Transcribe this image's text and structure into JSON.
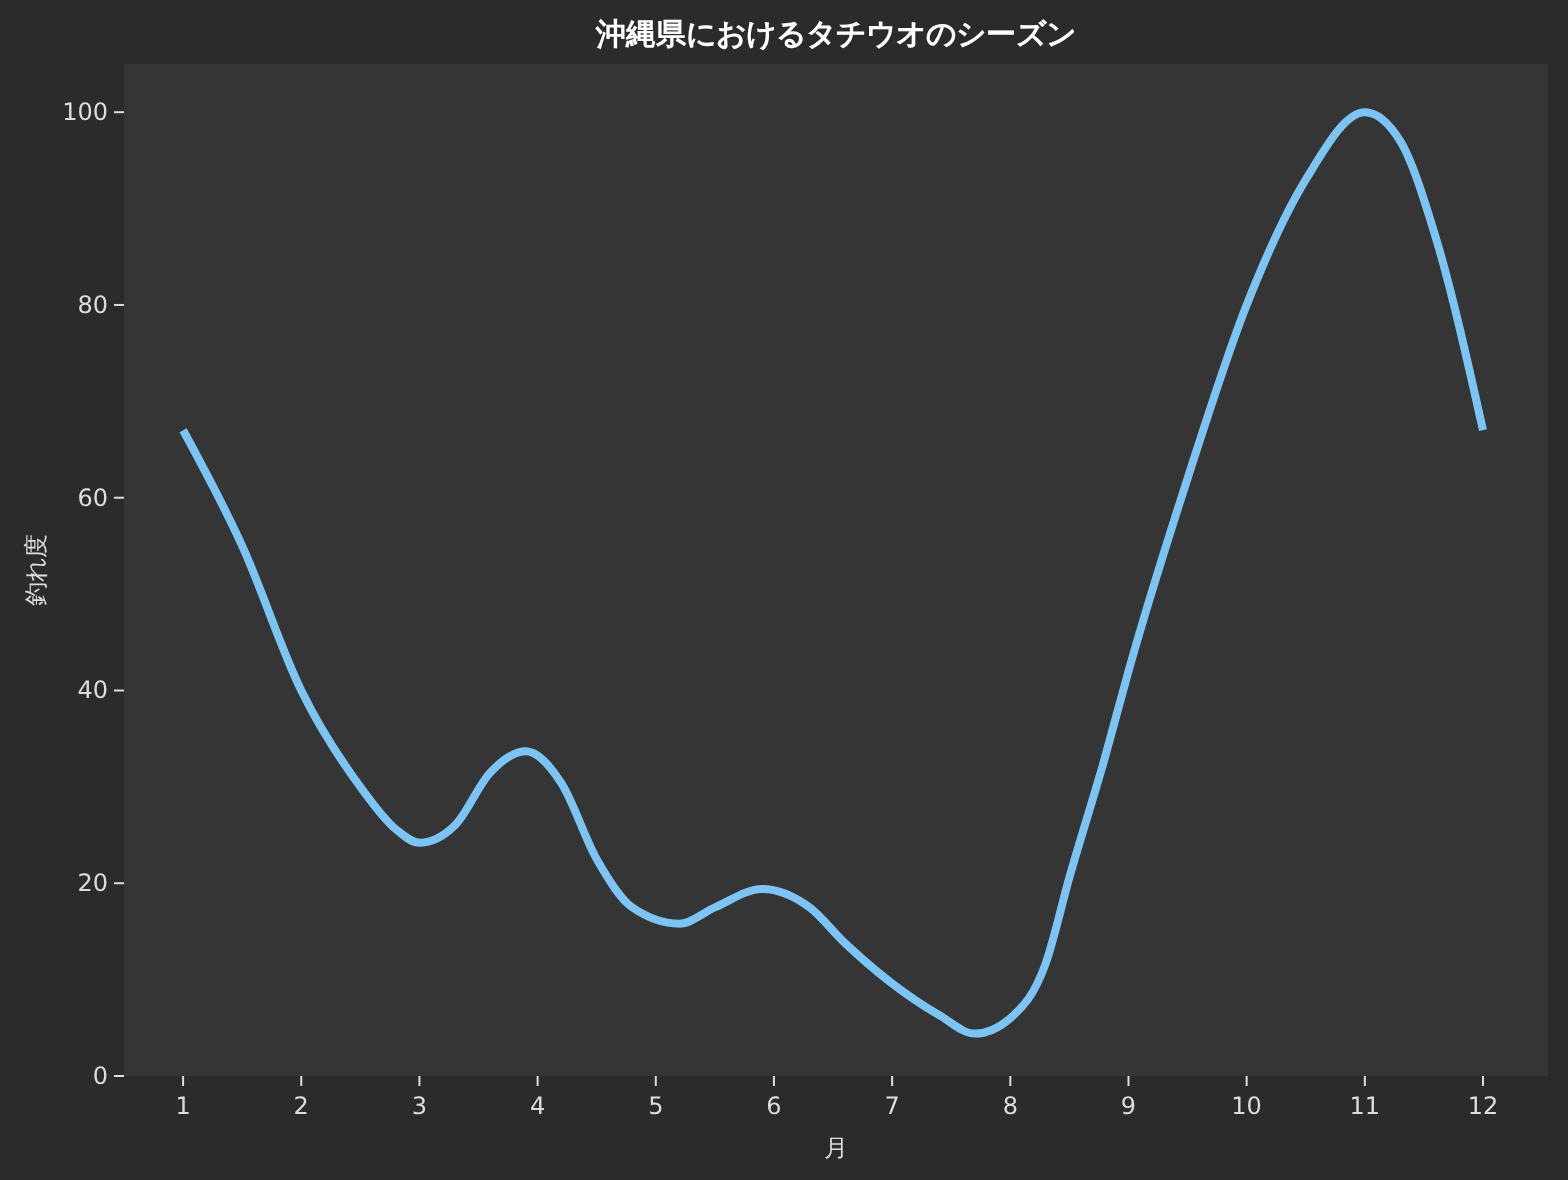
{
  "chart_data": {
    "type": "line",
    "title": "沖縄県におけるタチウオのシーズン",
    "xlabel": "月",
    "ylabel": "釣れ度",
    "x": [
      1,
      1.5,
      2,
      2.5,
      2.8,
      3,
      3.3,
      3.6,
      3.9,
      4.2,
      4.5,
      4.8,
      5.2,
      5.5,
      5.9,
      6.3,
      6.6,
      7,
      7.4,
      7.7,
      8,
      8.3,
      8.5,
      8.8,
      9,
      9.5,
      10,
      10.5,
      11,
      11.3,
      11.6,
      12
    ],
    "series": [
      {
        "color": "#7cc4f4",
        "values": [
          67,
          55,
          40,
          30,
          25.6,
          24.2,
          26,
          31.5,
          33.7,
          30.4,
          22.5,
          17.5,
          15.8,
          17.5,
          19.4,
          17.5,
          13.8,
          9.6,
          6.3,
          4.4,
          6,
          11.7,
          20.6,
          33,
          42,
          62,
          80,
          93,
          100,
          97,
          87,
          67
        ]
      }
    ],
    "xlim": [
      0.5,
      12.55
    ],
    "xticks": [
      1,
      2,
      3,
      4,
      5,
      6,
      7,
      8,
      9,
      10,
      11,
      12
    ],
    "ylim": [
      0,
      105
    ],
    "yticks": [
      0,
      20,
      40,
      60,
      80,
      100
    ],
    "grid": false,
    "marker": "none",
    "line_style": "solid"
  }
}
